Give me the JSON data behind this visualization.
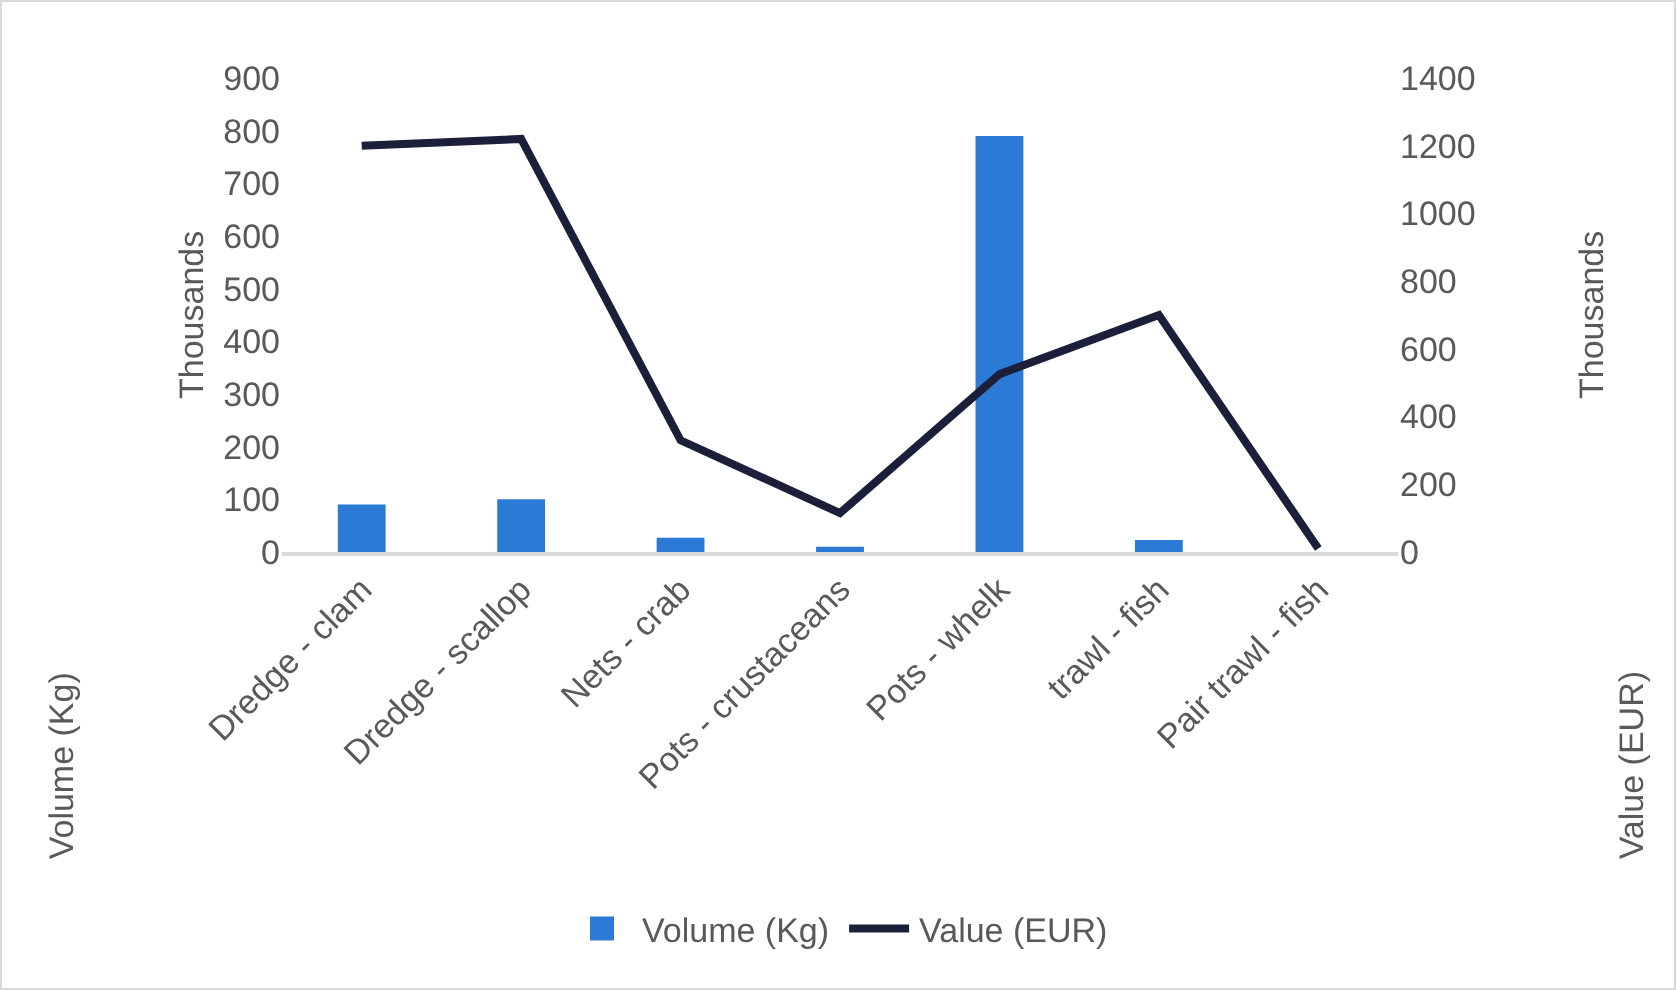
{
  "chart_data": {
    "type": "bar",
    "categories": [
      "Dredge - clam",
      "Dredge - scallop",
      "Nets - crab",
      "Pots - crustaceans",
      "Pots - whelk",
      "trawl - fish",
      "Pair trawl - fish"
    ],
    "series": [
      {
        "name": "Volume (Kg)",
        "color": "#2b7bd6",
        "values": [
          90,
          100,
          27,
          10,
          790,
          23,
          0
        ]
      },
      {
        "name": "Value (EUR)",
        "type": "line",
        "axis": "y2",
        "color": "#1c1f3a",
        "values": [
          1200,
          1220,
          330,
          115,
          525,
          700,
          10
        ]
      }
    ],
    "ylabel": "Volume (Kg)",
    "y2label": "Value (EUR)",
    "annotations": [
      "Thousands",
      "Thousands"
    ],
    "ylim": [
      0,
      900
    ],
    "yticks": [
      0,
      100,
      200,
      300,
      400,
      500,
      600,
      700,
      800,
      900
    ],
    "y2lim": [
      0,
      1400
    ],
    "y2ticks": [
      0,
      200,
      400,
      600,
      800,
      1000,
      1200,
      1400
    ],
    "grid": false,
    "legend": "bottom",
    "marker": "none",
    "line_style": "solid"
  }
}
